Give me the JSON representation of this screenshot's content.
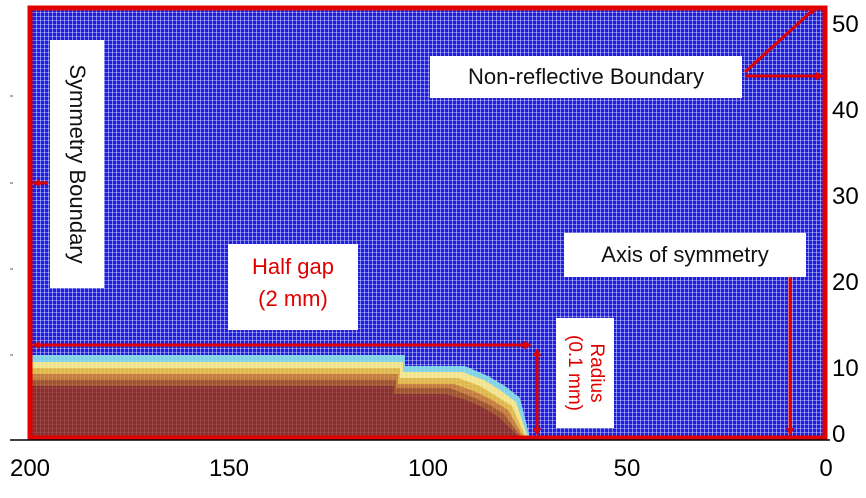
{
  "colors": {
    "mesh_background": "#1d1ee0",
    "mesh_line": "#ffffff",
    "annotation": "#e00000",
    "plasma_layers": [
      "#8b2e2e",
      "#a0522d",
      "#c67b3b",
      "#e0b84a",
      "#f2e48a",
      "#7fd3e8"
    ]
  },
  "axes": {
    "x_ticks": [
      "200",
      "150",
      "100",
      "50",
      "0"
    ],
    "y_ticks": [
      "50",
      "40",
      "30",
      "20",
      "10",
      "0"
    ]
  },
  "labels": {
    "non_reflective": "Non-reflective Boundary",
    "symmetry_boundary": "Symmetry Boundary",
    "axis_of_symmetry": "Axis of symmetry",
    "half_gap": "Half gap",
    "half_gap_value": "(2 mm)",
    "radius": "Radius",
    "radius_value": "(0.1 mm)"
  }
}
